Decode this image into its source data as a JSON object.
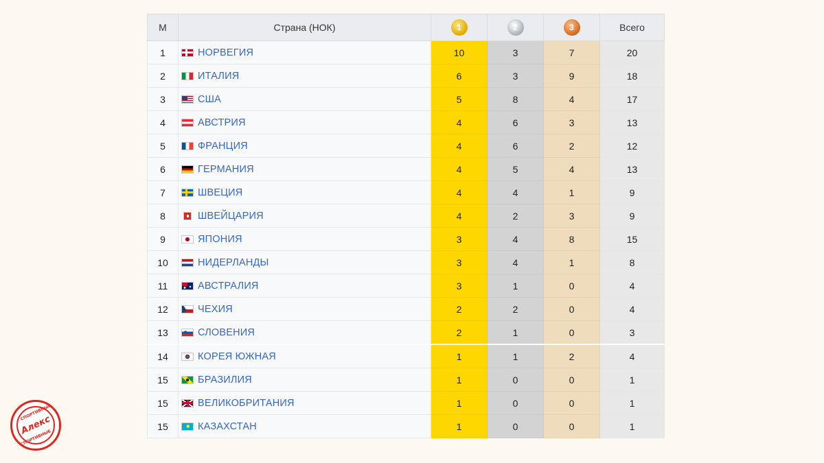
{
  "table": {
    "headers": {
      "rank": "М",
      "country": "Страна (НОК)",
      "gold": "1",
      "silver": "2",
      "bronze": "3",
      "total": "Всего"
    },
    "rows": [
      {
        "rank": "1",
        "country": "НОРВЕГИЯ",
        "flag": "norway-flag-icon",
        "gold": "10",
        "silver": "3",
        "bronze": "7",
        "total": "20"
      },
      {
        "rank": "2",
        "country": "ИТАЛИЯ",
        "flag": "italy-flag-icon",
        "gold": "6",
        "silver": "3",
        "bronze": "9",
        "total": "18"
      },
      {
        "rank": "3",
        "country": "США",
        "flag": "usa-flag-icon",
        "gold": "5",
        "silver": "8",
        "bronze": "4",
        "total": "17"
      },
      {
        "rank": "4",
        "country": "АВСТРИЯ",
        "flag": "austria-flag-icon",
        "gold": "4",
        "silver": "6",
        "bronze": "3",
        "total": "13"
      },
      {
        "rank": "5",
        "country": "ФРАНЦИЯ",
        "flag": "france-flag-icon",
        "gold": "4",
        "silver": "6",
        "bronze": "2",
        "total": "12"
      },
      {
        "rank": "6",
        "country": "ГЕРМАНИЯ",
        "flag": "germany-flag-icon",
        "gold": "4",
        "silver": "5",
        "bronze": "4",
        "total": "13"
      },
      {
        "rank": "7",
        "country": "ШВЕЦИЯ",
        "flag": "sweden-flag-icon",
        "gold": "4",
        "silver": "4",
        "bronze": "1",
        "total": "9"
      },
      {
        "rank": "8",
        "country": "ШВЕЙЦАРИЯ",
        "flag": "switzerland-flag-icon",
        "gold": "4",
        "silver": "2",
        "bronze": "3",
        "total": "9"
      },
      {
        "rank": "9",
        "country": "ЯПОНИЯ",
        "flag": "japan-flag-icon",
        "gold": "3",
        "silver": "4",
        "bronze": "8",
        "total": "15"
      },
      {
        "rank": "10",
        "country": "НИДЕРЛАНДЫ",
        "flag": "netherlands-flag-icon",
        "gold": "3",
        "silver": "4",
        "bronze": "1",
        "total": "8"
      },
      {
        "rank": "11",
        "country": "АВСТРАЛИЯ",
        "flag": "australia-flag-icon",
        "gold": "3",
        "silver": "1",
        "bronze": "0",
        "total": "4"
      },
      {
        "rank": "12",
        "country": "ЧЕХИЯ",
        "flag": "czech-flag-icon",
        "gold": "2",
        "silver": "2",
        "bronze": "0",
        "total": "4"
      },
      {
        "rank": "13",
        "country": "СЛОВЕНИЯ",
        "flag": "slovenia-flag-icon",
        "gold": "2",
        "silver": "1",
        "bronze": "0",
        "total": "3"
      },
      {
        "rank": "14",
        "country": "КОРЕЯ ЮЖНАЯ",
        "flag": "south-korea-flag-icon",
        "gold": "1",
        "silver": "1",
        "bronze": "2",
        "total": "4"
      },
      {
        "rank": "15",
        "country": "БРАЗИЛИЯ",
        "flag": "brazil-flag-icon",
        "gold": "1",
        "silver": "0",
        "bronze": "0",
        "total": "1"
      },
      {
        "rank": "15",
        "country": "ВЕЛИКОБРИТАНИЯ",
        "flag": "uk-flag-icon",
        "gold": "1",
        "silver": "0",
        "bronze": "0",
        "total": "1"
      },
      {
        "rank": "15",
        "country": "КАЗАХСТАН",
        "flag": "kazakhstan-flag-icon",
        "gold": "1",
        "silver": "0",
        "bronze": "0",
        "total": "1"
      }
    ]
  },
  "colors": {
    "gold": "#ffd700",
    "silver": "#d3d3d3",
    "bronze": "#efdcbc",
    "link": "#3366cc",
    "stamp": "#e1251b"
  },
  "stamp": {
    "top": "СПОРТИВНЫЕ",
    "main": "Алекс",
    "bottom": "СПОРТИВНЫЕ"
  }
}
